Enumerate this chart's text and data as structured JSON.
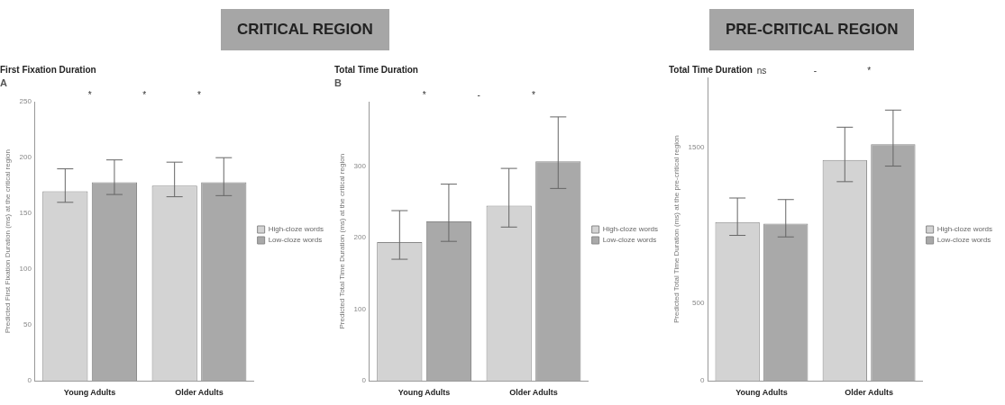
{
  "chart_data": [
    {
      "type": "other",
      "title": "CRITICAL REGION"
    },
    {
      "type": "bar",
      "title": "First Fixation Duration",
      "subtitle": "A",
      "ylabel": "Predicted First Fixation Duration (ms) at the critical region",
      "categories": [
        "Young Adults",
        "Older Adults"
      ],
      "series": [
        {
          "name": "High-cloze words",
          "color": "#d3d3d3",
          "values": [
            170,
            175
          ],
          "errors": [
            [
              160,
              190
            ],
            [
              165,
              196
            ]
          ]
        },
        {
          "name": "Low-cloze words",
          "color": "#a9a9a9",
          "values": [
            178,
            178
          ],
          "errors": [
            [
              167,
              198
            ],
            [
              166,
              200
            ]
          ]
        }
      ],
      "ylim": [
        0,
        250
      ],
      "yticks": [
        0,
        50,
        100,
        150,
        200,
        250
      ],
      "grid": false,
      "legend": "right",
      "annotations": [
        "*",
        "*",
        "*"
      ]
    },
    {
      "type": "bar",
      "title": "Total Time Duration",
      "subtitle": "B",
      "ylabel": "Predicted Total Time Duration (ms) at the critical region",
      "categories": [
        "Young Adults",
        "Older Adults"
      ],
      "series": [
        {
          "name": "High-cloze words",
          "color": "#d3d3d3",
          "values": [
            194,
            245
          ],
          "errors": [
            [
              170,
              238
            ],
            [
              215,
              297
            ]
          ]
        },
        {
          "name": "Low-cloze words",
          "color": "#a9a9a9",
          "values": [
            223,
            307
          ],
          "errors": [
            [
              195,
              275
            ],
            [
              269,
              369
            ]
          ]
        }
      ],
      "ylim": [
        0,
        390
      ],
      "yticks": [
        0,
        100,
        200,
        300
      ],
      "grid": false,
      "legend": "right",
      "annotations": [
        "*",
        "-",
        "*"
      ]
    },
    {
      "type": "other",
      "title": "PRE-CRITICAL REGION"
    },
    {
      "type": "bar",
      "title": "Total Time Duration",
      "ylabel": "Predicted Total Time Duration (ms) at the pre-critical region",
      "categories": [
        "Young Adults",
        "Older Adults"
      ],
      "series": [
        {
          "name": "High-cloze words",
          "color": "#d3d3d3",
          "values": [
            1020,
            1420
          ],
          "errors": [
            [
              935,
              1175
            ],
            [
              1280,
              1630
            ]
          ]
        },
        {
          "name": "Low-cloze words",
          "color": "#a9a9a9",
          "values": [
            1010,
            1520
          ],
          "errors": [
            [
              925,
              1165
            ],
            [
              1380,
              1740
            ]
          ]
        }
      ],
      "ylim": [
        0,
        1950
      ],
      "yticks": [
        0,
        500,
        1500
      ],
      "grid": false,
      "legend": "right",
      "annotations": [
        "ns",
        "-",
        "*"
      ]
    }
  ]
}
